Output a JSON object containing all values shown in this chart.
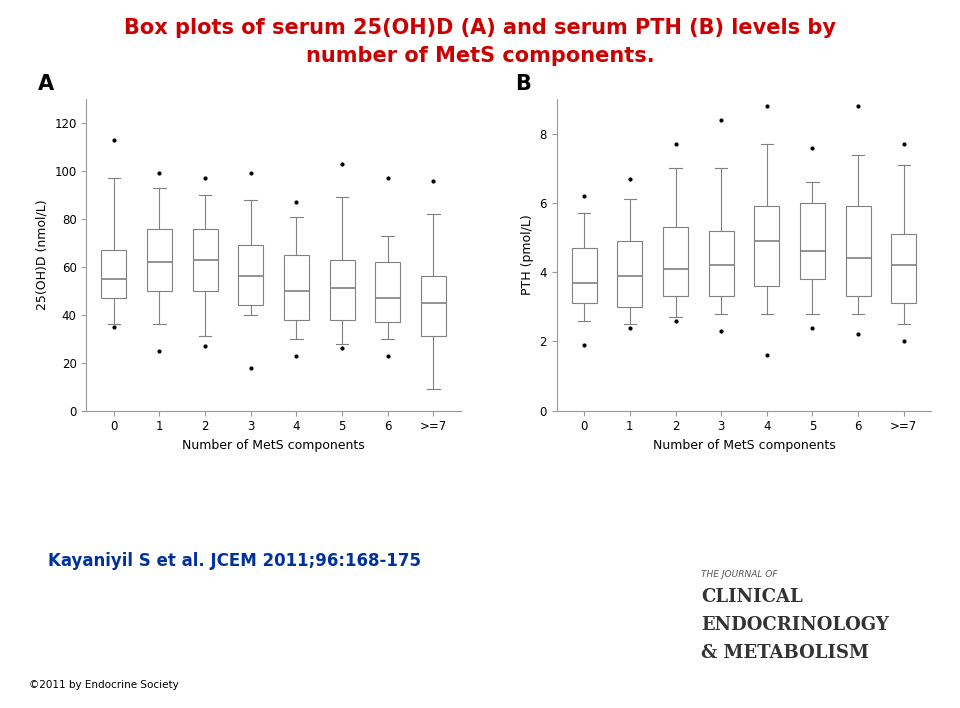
{
  "title_line1": "Box plots of serum 25(OH)D (A) and serum PTH (B) levels by",
  "title_line2": "number of MetS components.",
  "title_color": "#CC0000",
  "panel_A_label": "A",
  "panel_B_label": "B",
  "categories": [
    "0",
    "1",
    "2",
    "3",
    "4",
    "5",
    "6",
    ">=7"
  ],
  "xlabel": "Number of MetS components",
  "ylabel_A": "25(OH)D (nmol/L)",
  "ylabel_B": "PTH (pmol/L)",
  "ylim_A": [
    0,
    130
  ],
  "yticks_A": [
    0,
    20,
    40,
    60,
    80,
    100,
    120
  ],
  "ylim_B": [
    0,
    9
  ],
  "yticks_B": [
    0,
    2,
    4,
    6,
    8
  ],
  "A_boxes": [
    {
      "q1": 47,
      "median": 55,
      "q3": 67,
      "whislo": 36,
      "whishi": 97,
      "fliers": [
        35,
        113
      ]
    },
    {
      "q1": 50,
      "median": 62,
      "q3": 76,
      "whislo": 36,
      "whishi": 93,
      "fliers": [
        25,
        99
      ]
    },
    {
      "q1": 50,
      "median": 63,
      "q3": 76,
      "whislo": 31,
      "whishi": 90,
      "fliers": [
        27,
        97
      ]
    },
    {
      "q1": 44,
      "median": 56,
      "q3": 69,
      "whislo": 40,
      "whishi": 88,
      "fliers": [
        18,
        99
      ]
    },
    {
      "q1": 38,
      "median": 50,
      "q3": 65,
      "whislo": 30,
      "whishi": 81,
      "fliers": [
        23,
        87
      ]
    },
    {
      "q1": 38,
      "median": 51,
      "q3": 63,
      "whislo": 28,
      "whishi": 89,
      "fliers": [
        26,
        103
      ]
    },
    {
      "q1": 37,
      "median": 47,
      "q3": 62,
      "whislo": 30,
      "whishi": 73,
      "fliers": [
        23,
        97
      ]
    },
    {
      "q1": 31,
      "median": 45,
      "q3": 56,
      "whislo": 9,
      "whishi": 82,
      "fliers": [
        96
      ]
    }
  ],
  "B_boxes": [
    {
      "q1": 3.1,
      "median": 3.7,
      "q3": 4.7,
      "whislo": 2.6,
      "whishi": 5.7,
      "fliers": [
        1.9,
        6.2
      ]
    },
    {
      "q1": 3.0,
      "median": 3.9,
      "q3": 4.9,
      "whislo": 2.5,
      "whishi": 6.1,
      "fliers": [
        2.4,
        6.7
      ]
    },
    {
      "q1": 3.3,
      "median": 4.1,
      "q3": 5.3,
      "whislo": 2.7,
      "whishi": 7.0,
      "fliers": [
        2.6,
        7.7
      ]
    },
    {
      "q1": 3.3,
      "median": 4.2,
      "q3": 5.2,
      "whislo": 2.8,
      "whishi": 7.0,
      "fliers": [
        2.3,
        8.4
      ]
    },
    {
      "q1": 3.6,
      "median": 4.9,
      "q3": 5.9,
      "whislo": 2.8,
      "whishi": 7.7,
      "fliers": [
        1.6,
        8.8
      ]
    },
    {
      "q1": 3.8,
      "median": 4.6,
      "q3": 6.0,
      "whislo": 2.8,
      "whishi": 6.6,
      "fliers": [
        2.4,
        7.6
      ]
    },
    {
      "q1": 3.3,
      "median": 4.4,
      "q3": 5.9,
      "whislo": 2.8,
      "whishi": 7.4,
      "fliers": [
        2.2,
        8.8
      ]
    },
    {
      "q1": 3.1,
      "median": 4.2,
      "q3": 5.1,
      "whislo": 2.5,
      "whishi": 7.1,
      "fliers": [
        2.0,
        7.7
      ]
    }
  ],
  "box_color": "#ffffff",
  "box_edge_color": "#808080",
  "median_color": "#808080",
  "flier_color": "black",
  "whisker_color": "#808080",
  "cap_color": "#808080",
  "footer_text": "Kayaniyil S et al. JCEM 2011;96:168-175",
  "footer_color": "#003399",
  "copyright_text": "©2011 by Endocrine Society"
}
